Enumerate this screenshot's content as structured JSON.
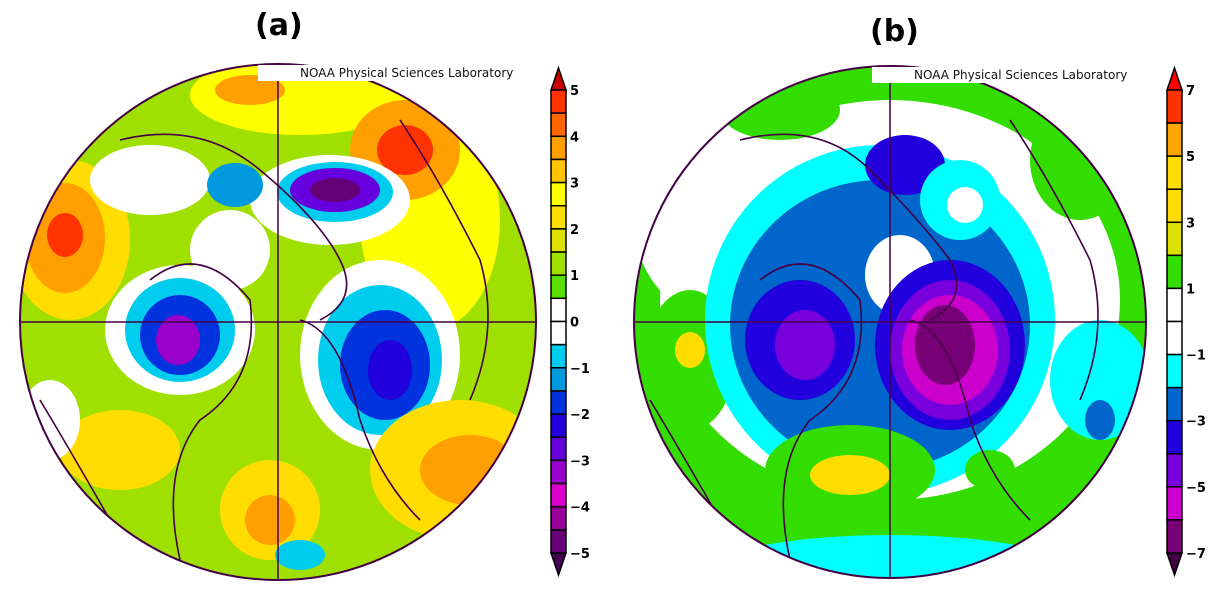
{
  "panels": [
    {
      "label": "(a)",
      "credit": "NOAA Physical Sciences Laboratory",
      "colorbar": {
        "ticks": [
          "5",
          "4",
          "3",
          "2",
          "1",
          "0",
          "−1",
          "−2",
          "−3",
          "−4",
          "−5"
        ],
        "colors": [
          "#ff3300",
          "#ff6600",
          "#ffa000",
          "#ffc400",
          "#ffff00",
          "#ffdd00",
          "#dde000",
          "#a0e000",
          "#5ae000",
          "#ffffff",
          "#ffffff",
          "#00ccee",
          "#0099dd",
          "#0033dd",
          "#2200dd",
          "#6600dd",
          "#9900cc",
          "#dd00cc",
          "#990099",
          "#660077"
        ],
        "arrow_top": "#cc0000",
        "arrow_bottom": "#440055"
      }
    },
    {
      "label": "(b)",
      "credit": "NOAA Physical Sciences Laboratory",
      "colorbar": {
        "ticks": [
          "7",
          "5",
          "3",
          "1",
          "−1",
          "−3",
          "−5",
          "−7"
        ],
        "colors": [
          "#ff3300",
          "#ffa500",
          "#ffdd00",
          "#ffdd00",
          "#dde000",
          "#33dd00",
          "#ffffff",
          "#ffffff",
          "#00ffff",
          "#0066cc",
          "#2200dd",
          "#7700dd",
          "#cc00cc",
          "#770077"
        ],
        "arrow_top": "#ff0000",
        "arrow_bottom": "#440044"
      }
    }
  ]
}
